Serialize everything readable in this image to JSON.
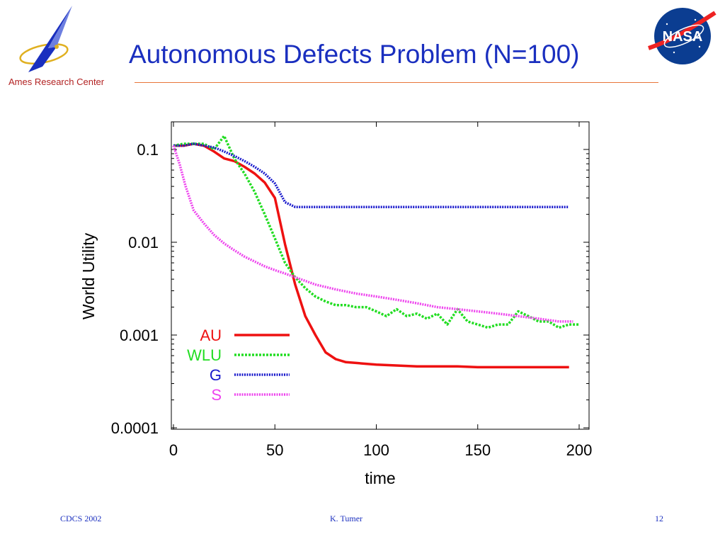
{
  "header": {
    "title": "Autonomous Defects Problem (N=100)",
    "left_logo_caption": "Ames Research Center",
    "right_logo_text": "NASA"
  },
  "footer": {
    "left": "CDCS 2002",
    "center": "K. Tumer",
    "right": "12"
  },
  "colors": {
    "title": "#1a2fbf",
    "rule": "#e8753a",
    "AU": "#ee1111",
    "WLU": "#22dd22",
    "G": "#1a1acc",
    "S": "#ee44ee"
  },
  "chart_data": {
    "type": "line",
    "xlabel": "time",
    "ylabel": "World Utility",
    "xlim": [
      0,
      200
    ],
    "ylim": [
      0.0001,
      0.2
    ],
    "yscale": "log",
    "xticks": [
      0,
      50,
      100,
      150,
      200
    ],
    "yticks": [
      0.1,
      0.01,
      0.001,
      0.0001
    ],
    "xtick_labels": [
      "0",
      "50",
      "100",
      "150",
      "200"
    ],
    "ytick_labels": [
      "0.1",
      "0.01",
      "0.001",
      "0.0001"
    ],
    "legend_position": "center-left",
    "series": [
      {
        "name": "AU",
        "color": "#ee1111",
        "style": "solid",
        "x": [
          0,
          5,
          10,
          15,
          20,
          25,
          30,
          35,
          40,
          45,
          50,
          55,
          60,
          65,
          70,
          75,
          80,
          85,
          90,
          95,
          100,
          110,
          120,
          130,
          140,
          150,
          160,
          170,
          180,
          190,
          195
        ],
        "y": [
          0.11,
          0.11,
          0.115,
          0.11,
          0.095,
          0.08,
          0.075,
          0.065,
          0.055,
          0.044,
          0.03,
          0.0095,
          0.0035,
          0.0016,
          0.001,
          0.00065,
          0.00055,
          0.00051,
          0.0005,
          0.00049,
          0.00048,
          0.00047,
          0.00046,
          0.00046,
          0.00046,
          0.00045,
          0.00045,
          0.00045,
          0.00045,
          0.00045,
          0.00045
        ]
      },
      {
        "name": "WLU",
        "color": "#22dd22",
        "style": "dashed",
        "x": [
          0,
          5,
          10,
          15,
          20,
          25,
          30,
          35,
          40,
          45,
          50,
          55,
          60,
          65,
          70,
          75,
          80,
          85,
          90,
          95,
          100,
          105,
          110,
          115,
          120,
          125,
          130,
          135,
          140,
          145,
          150,
          155,
          160,
          165,
          170,
          175,
          180,
          185,
          190,
          195,
          200
        ],
        "y": [
          0.11,
          0.115,
          0.115,
          0.115,
          0.1,
          0.14,
          0.08,
          0.055,
          0.035,
          0.02,
          0.011,
          0.006,
          0.0042,
          0.0032,
          0.0026,
          0.0023,
          0.0021,
          0.0021,
          0.002,
          0.002,
          0.0018,
          0.0016,
          0.0019,
          0.0016,
          0.0017,
          0.0015,
          0.0017,
          0.0013,
          0.0019,
          0.0014,
          0.0013,
          0.0012,
          0.0013,
          0.0013,
          0.0018,
          0.0016,
          0.0014,
          0.0014,
          0.0012,
          0.0013,
          0.0013
        ]
      },
      {
        "name": "G",
        "color": "#1a1acc",
        "style": "dotted",
        "x": [
          0,
          5,
          10,
          15,
          20,
          25,
          30,
          35,
          40,
          45,
          50,
          55,
          60,
          70,
          80,
          90,
          100,
          120,
          140,
          160,
          180,
          195
        ],
        "y": [
          0.11,
          0.11,
          0.115,
          0.11,
          0.105,
          0.095,
          0.085,
          0.075,
          0.065,
          0.055,
          0.043,
          0.027,
          0.024,
          0.024,
          0.024,
          0.024,
          0.024,
          0.024,
          0.024,
          0.024,
          0.024,
          0.024
        ]
      },
      {
        "name": "S",
        "color": "#ee44ee",
        "style": "dotted",
        "x": [
          0,
          3,
          6,
          10,
          15,
          20,
          25,
          30,
          35,
          40,
          45,
          50,
          55,
          60,
          70,
          80,
          90,
          100,
          110,
          120,
          130,
          140,
          150,
          160,
          170,
          180,
          190,
          197
        ],
        "y": [
          0.11,
          0.07,
          0.04,
          0.022,
          0.016,
          0.012,
          0.0097,
          0.0082,
          0.007,
          0.0062,
          0.0055,
          0.005,
          0.0046,
          0.0042,
          0.0035,
          0.0031,
          0.0028,
          0.0026,
          0.0024,
          0.0022,
          0.002,
          0.0019,
          0.0018,
          0.0017,
          0.0016,
          0.0015,
          0.0014,
          0.0014
        ]
      }
    ]
  }
}
